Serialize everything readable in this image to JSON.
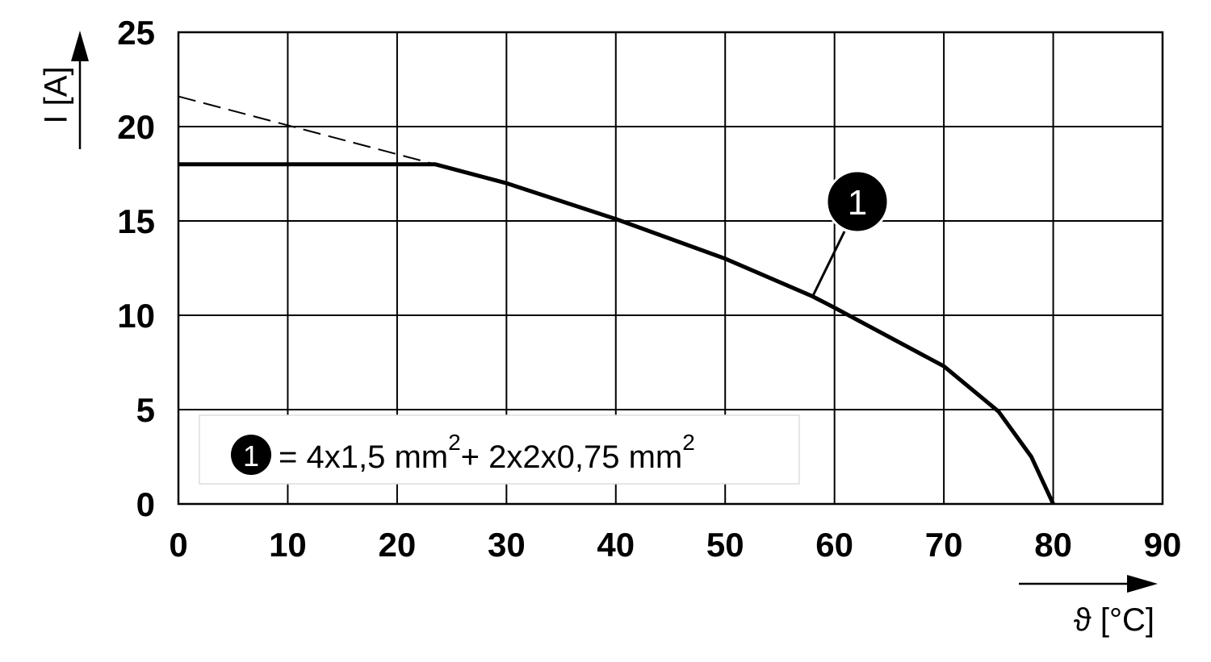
{
  "chart_data": {
    "type": "line",
    "x_label": "ϑ [°C]",
    "y_label": "I [A]",
    "xlim": [
      0,
      90
    ],
    "xticks": [
      0,
      10,
      20,
      30,
      40,
      50,
      60,
      70,
      80,
      90
    ],
    "ylim": [
      0,
      25
    ],
    "yticks": [
      0,
      5,
      10,
      15,
      20,
      25
    ],
    "grid": true,
    "series": [
      {
        "color": "#000000",
        "dashed": false,
        "x": [
          0,
          23.5,
          30,
          40,
          50,
          58,
          60,
          70,
          75,
          78,
          80
        ],
        "values": [
          18,
          18,
          17,
          15.1,
          13,
          11,
          10.4,
          7.3,
          4.9,
          2.5,
          0
        ]
      },
      {
        "color": "#000000",
        "dashed": true,
        "x": [
          0,
          23.5
        ],
        "values": [
          21.6,
          18
        ]
      }
    ],
    "annotation": {
      "label": "1",
      "x": 58,
      "y": 11
    },
    "legend": {
      "marker": "1",
      "text": [
        "= 4x1,5 mm",
        "2",
        "+ 2x2x0,75 mm",
        "2"
      ]
    }
  }
}
